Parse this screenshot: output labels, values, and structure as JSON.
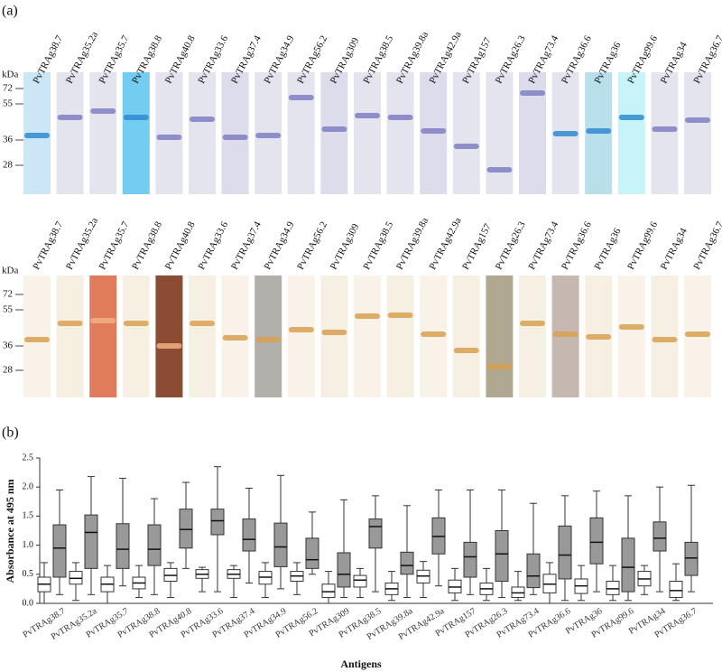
{
  "panel_a": {
    "label": "(a)",
    "kda_label": "kDa",
    "markers": [
      72,
      55,
      36,
      28
    ],
    "lanes": [
      "PvTRAg38.7",
      "PvTRAg35.2a",
      "PvTRAg35.7",
      "PvTRAg38.8",
      "PvTRAg40.8",
      "PvTRAg33.6",
      "PvTRAg37.4",
      "PvTRAg34.9",
      "PvTRAg56.2",
      "PvTRAg309",
      "PvTRAg38.5",
      "PvTRAg39.8a",
      "PvTRAg42.9a",
      "PvTRAg157",
      "PvTRAg26.3",
      "PvTRAg73.4",
      "PvTRAg36.6",
      "PvTRAg36",
      "PvTRAg99.6",
      "PvTRAg34",
      "PvTRAg36.7"
    ]
  },
  "chart_data": {
    "type": "box",
    "label": "(b)",
    "y_label": "Absorbance at 495 nm",
    "x_label": "Antigens",
    "categories": [
      "PvTRAg38.7",
      "PvTRAg35.2a",
      "PvTRAg35.7",
      "PvTRAg38.8",
      "PvTRAg40.8",
      "PvTRAg33.6",
      "PvTRAg37.4",
      "PvTRAg34.9",
      "PvTRAg56.2",
      "PvTRAg309",
      "PvTRAg38.5",
      "PvTRAg39.8a",
      "PvTRAg42.9a",
      "PvTRAg157",
      "PvTRAg26.3",
      "PvTRAg73.4",
      "PvTRAg36.6",
      "PvTRAg36",
      "PvTRAg99.6",
      "PvTRAg34",
      "PvTRAg36.7"
    ],
    "ylim": [
      0,
      2.5
    ],
    "yticks": [
      {
        "value": 0,
        "label": "0.0"
      },
      0.5,
      {
        "value": 1,
        "label": "1.0"
      },
      1.5,
      {
        "value": 2,
        "label": "2.0"
      },
      2.5
    ],
    "series": [
      {
        "color": "#ffffff",
        "min": [
          0.0,
          0.05,
          0.0,
          0.1,
          0.1,
          0.2,
          0.1,
          0.1,
          0.15,
          0.0,
          0.1,
          0.05,
          0.1,
          0.05,
          0.05,
          0.05,
          0.0,
          0.05,
          0.05,
          0.15,
          0.05
        ],
        "q1": [
          0.2,
          0.33,
          0.2,
          0.25,
          0.38,
          0.43,
          0.43,
          0.33,
          0.38,
          0.1,
          0.28,
          0.15,
          0.35,
          0.18,
          0.15,
          0.1,
          0.18,
          0.17,
          0.15,
          0.3,
          0.1
        ],
        "median": [
          0.33,
          0.43,
          0.33,
          0.35,
          0.48,
          0.5,
          0.5,
          0.45,
          0.47,
          0.2,
          0.4,
          0.25,
          0.47,
          0.28,
          0.25,
          0.18,
          0.33,
          0.3,
          0.25,
          0.42,
          0.22
        ],
        "q3": [
          0.45,
          0.55,
          0.45,
          0.45,
          0.6,
          0.58,
          0.58,
          0.55,
          0.55,
          0.33,
          0.48,
          0.35,
          0.57,
          0.4,
          0.35,
          0.28,
          0.5,
          0.42,
          0.38,
          0.55,
          0.38
        ],
        "max": [
          0.7,
          0.7,
          0.65,
          0.65,
          0.7,
          0.62,
          0.65,
          0.7,
          0.7,
          0.55,
          0.6,
          0.55,
          0.72,
          0.6,
          0.6,
          0.55,
          0.7,
          0.65,
          0.65,
          0.65,
          0.68
        ]
      },
      {
        "color": "#999999",
        "min": [
          0.15,
          0.15,
          0.3,
          0.15,
          0.6,
          0.2,
          0.35,
          0.25,
          0.5,
          0.1,
          0.2,
          0.1,
          0.3,
          0.15,
          0.1,
          0.15,
          0.05,
          0.2,
          0.05,
          0.2,
          0.2
        ],
        "q1": [
          0.45,
          0.6,
          0.6,
          0.65,
          0.95,
          1.18,
          0.9,
          0.63,
          0.6,
          0.28,
          0.95,
          0.5,
          0.85,
          0.45,
          0.38,
          0.27,
          0.42,
          0.68,
          0.2,
          0.9,
          0.48
        ],
        "median": [
          0.95,
          1.22,
          0.93,
          0.93,
          1.27,
          1.42,
          1.1,
          0.97,
          0.75,
          0.5,
          1.32,
          0.65,
          1.15,
          0.8,
          0.85,
          0.47,
          0.83,
          1.05,
          0.62,
          1.12,
          0.78
        ],
        "q3": [
          1.35,
          1.52,
          1.37,
          1.35,
          1.62,
          1.62,
          1.45,
          1.38,
          1.12,
          0.87,
          1.45,
          0.88,
          1.47,
          1.05,
          1.25,
          0.85,
          1.33,
          1.47,
          1.12,
          1.4,
          1.05
        ],
        "max": [
          1.95,
          2.18,
          2.15,
          1.8,
          2.08,
          2.35,
          1.98,
          2.2,
          1.57,
          1.78,
          1.85,
          1.68,
          1.95,
          1.95,
          1.95,
          1.72,
          1.85,
          1.93,
          1.85,
          2.0,
          2.03
        ]
      }
    ]
  }
}
